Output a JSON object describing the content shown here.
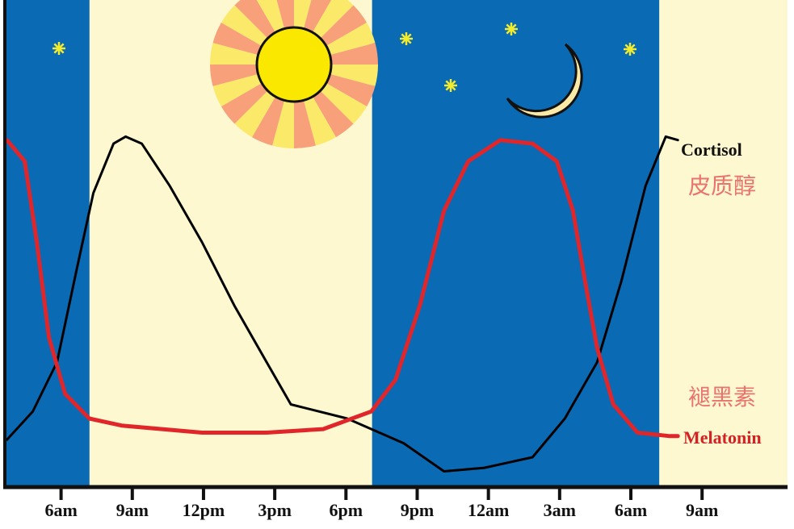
{
  "chart_data": {
    "type": "line",
    "title": "",
    "xlabel": "",
    "ylabel": "",
    "x_unit": "hour of day (continuous, 24 = 12am next day)",
    "xlim": [
      3.7,
      36.6
    ],
    "ylim": [
      0,
      100
    ],
    "grid": false,
    "x_ticks": [
      6,
      9,
      12,
      15,
      18,
      21,
      24,
      27,
      30,
      33
    ],
    "x_tick_labels": [
      "6am",
      "9am",
      "12pm",
      "3pm",
      "6pm",
      "9pm",
      "12am",
      "3am",
      "6am",
      "9am"
    ],
    "background_bands": [
      {
        "kind": "night",
        "from": 3.7,
        "to": 7.2,
        "color": "#0a6ab4"
      },
      {
        "kind": "day",
        "from": 7.2,
        "to": 19.1,
        "color": "#fdf8cf"
      },
      {
        "kind": "night",
        "from": 19.1,
        "to": 31.2,
        "color": "#0a6ab4"
      },
      {
        "kind": "day",
        "from": 31.2,
        "to": 36.6,
        "color": "#fdf8cf"
      }
    ],
    "series": [
      {
        "name": "Cortisol",
        "name_cn": "皮质醇",
        "color": "#000000",
        "x": [
          3.72,
          4.81,
          5.83,
          6.68,
          7.36,
          8.21,
          8.72,
          9.4,
          10.58,
          11.94,
          13.3,
          14.66,
          15.68,
          18.05,
          20.43,
          22.13,
          23.83,
          25.86,
          27.22,
          28.58,
          29.6,
          30.62,
          31.47,
          31.98
        ],
        "y": [
          13,
          21,
          35,
          62,
          83,
          97,
          99,
          97,
          85,
          69,
          51,
          35,
          23,
          19,
          12,
          4,
          5,
          8,
          19,
          35,
          58,
          85,
          99,
          98
        ]
      },
      {
        "name": "Melatonin",
        "name_cn": "褪黑素",
        "color": "#e0262a",
        "x": [
          3.72,
          4.47,
          4.98,
          5.49,
          6.17,
          7.19,
          8.55,
          11.94,
          14.66,
          17.04,
          19.07,
          20.09,
          21.11,
          22.13,
          23.15,
          24.51,
          25.86,
          26.88,
          27.56,
          28.07,
          28.58,
          29.26,
          30.28,
          31.64,
          31.98
        ],
        "y": [
          98,
          92,
          69,
          42,
          26,
          19,
          17,
          15,
          15,
          16,
          21,
          30,
          51,
          78,
          92,
          98,
          97,
          92,
          78,
          58,
          39,
          23,
          15,
          14,
          14
        ]
      }
    ],
    "decorations": [
      "sun-icon",
      "moon-icon",
      "star-icon"
    ]
  }
}
